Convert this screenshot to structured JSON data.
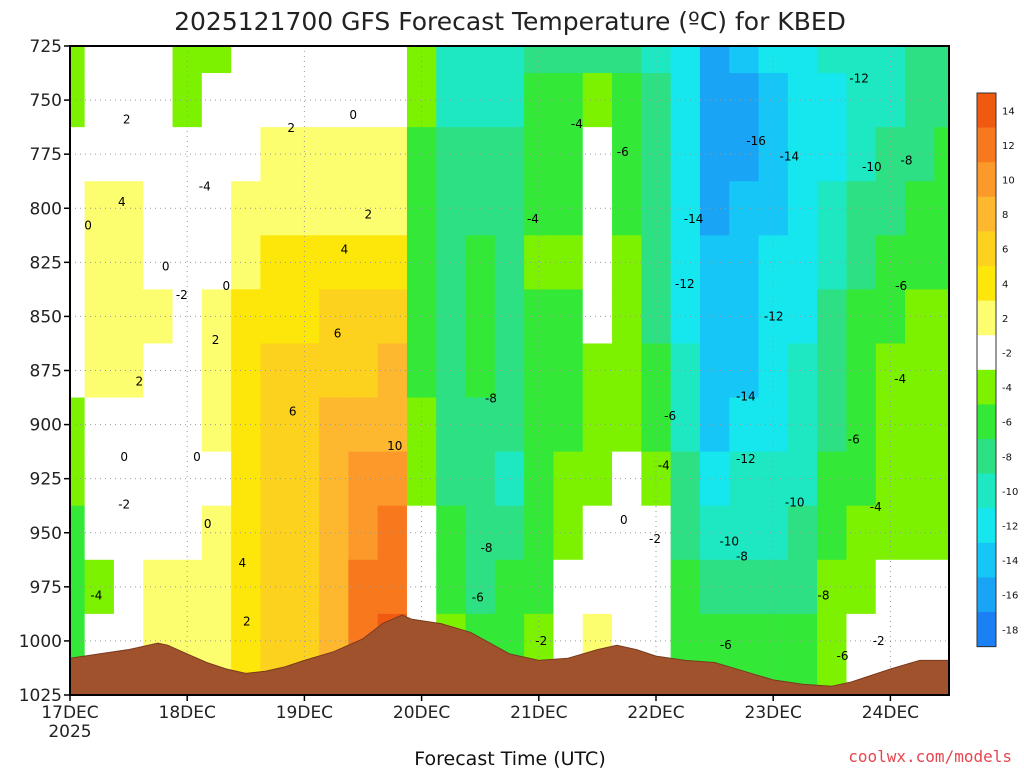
{
  "chart_data": {
    "type": "heatmap",
    "title": "2025121700 GFS Forecast Temperature (ºC) for KBED",
    "xlabel": "Forecast Time (UTC)",
    "ylabel": "",
    "credit": "coolwx.com/models",
    "x_ticks": [
      {
        "label": "17DEC",
        "sub": "2025",
        "hours": 0
      },
      {
        "label": "18DEC",
        "sub": "",
        "hours": 24
      },
      {
        "label": "19DEC",
        "sub": "",
        "hours": 48
      },
      {
        "label": "20DEC",
        "sub": "",
        "hours": 72
      },
      {
        "label": "21DEC",
        "sub": "",
        "hours": 96
      },
      {
        "label": "22DEC",
        "sub": "",
        "hours": 120
      },
      {
        "label": "23DEC",
        "sub": "",
        "hours": 144
      },
      {
        "label": "24DEC",
        "sub": "",
        "hours": 168
      }
    ],
    "x_range_hours": [
      0,
      180
    ],
    "y_ticks": [
      725,
      750,
      775,
      800,
      825,
      850,
      875,
      900,
      925,
      950,
      975,
      1000,
      1025
    ],
    "y_range_hpa": [
      725,
      1025
    ],
    "y_reversed": true,
    "grid": true,
    "colorbar": {
      "labels": [
        "14",
        "12",
        "10",
        "8",
        "6",
        "4",
        "2",
        "-2",
        "-4",
        "-6",
        "-8",
        "-10",
        "-12",
        "-14",
        "-16",
        "-18"
      ],
      "colors": [
        "#f05a10",
        "#f8781e",
        "#fb9a2a",
        "#fdb830",
        "#fdd21e",
        "#fde70a",
        "#fdfd70",
        "#ffffff",
        "#7df200",
        "#34e838",
        "#2ee084",
        "#1ee8c2",
        "#16e6ee",
        "#16c6f6",
        "#1aa4f6",
        "#1a80f4"
      ],
      "position": "right"
    },
    "columns_hours": [
      0,
      6,
      12,
      18,
      24,
      30,
      36,
      42,
      48,
      54,
      60,
      66,
      72,
      78,
      84,
      90,
      96,
      102,
      108,
      114,
      120,
      126,
      132,
      138,
      144,
      150,
      156,
      162,
      168,
      174,
      180
    ],
    "levels_hpa": [
      725,
      750,
      775,
      800,
      825,
      850,
      875,
      900,
      925,
      950,
      975,
      1000
    ],
    "temperature_c": [
      [
        -4,
        -3,
        -1,
        -1,
        0,
        -2,
        -2,
        -3,
        -4,
        -5,
        -6,
        -5
      ],
      [
        -2,
        0,
        1,
        3,
        2,
        3,
        2,
        1,
        0,
        -1,
        -3,
        -2
      ],
      [
        -1,
        0,
        1,
        2,
        2,
        3,
        2,
        1,
        1,
        -1,
        0,
        1
      ],
      [
        -1,
        -1,
        -1,
        0,
        1,
        2,
        1,
        1,
        0,
        1,
        2,
        2
      ],
      [
        -4,
        -3,
        -1,
        -1,
        -1,
        -2,
        -2,
        -1,
        0,
        1,
        2,
        2
      ],
      [
        -3,
        -2,
        0,
        1,
        1,
        2,
        2,
        2,
        1,
        2,
        3,
        3
      ],
      [
        -2,
        0,
        1,
        2,
        3,
        4,
        5,
        5,
        4,
        5,
        4,
        4
      ],
      [
        -1,
        1,
        2,
        3,
        4,
        5,
        6,
        6,
        6,
        6,
        6,
        6
      ],
      [
        0,
        1,
        2,
        3,
        4,
        5,
        6,
        6,
        7,
        7,
        7,
        7
      ],
      [
        0,
        1,
        2,
        3,
        4,
        6,
        7,
        8,
        9,
        9,
        9,
        9
      ],
      [
        0,
        1,
        2,
        3,
        4,
        6,
        7,
        9,
        10,
        11,
        12,
        12
      ],
      [
        0,
        1,
        2,
        2,
        4,
        6,
        8,
        9,
        10,
        12,
        13,
        14
      ],
      [
        -4,
        -4,
        -5,
        -5,
        -5,
        -5,
        -5,
        -4,
        -3,
        -2,
        -1,
        0
      ],
      [
        -10,
        -9,
        -7,
        -7,
        -7,
        -7,
        -7,
        -7,
        -7,
        -6,
        -5,
        -4
      ],
      [
        -10,
        -9,
        -7,
        -7,
        -6,
        -6,
        -6,
        -7,
        -8,
        -8,
        -7,
        -6
      ],
      [
        -9,
        -9,
        -8,
        -8,
        -7,
        -7,
        -7,
        -8,
        -10,
        -8,
        -6,
        -5
      ],
      [
        -8,
        -6,
        -5,
        -5,
        -4,
        -5,
        -5,
        -6,
        -6,
        -6,
        -5,
        -4
      ],
      [
        -7,
        -5,
        -5,
        -5,
        -4,
        -5,
        -5,
        -5,
        -4,
        -3,
        -1,
        0
      ],
      [
        -7,
        -4,
        -2,
        1,
        1,
        -2,
        -4,
        -4,
        -3,
        -1,
        1,
        2
      ],
      [
        -8,
        -6,
        -6,
        -5,
        -4,
        -4,
        -4,
        -4,
        -2,
        0,
        1,
        1
      ],
      [
        -9,
        -8,
        -8,
        -8,
        -7,
        -7,
        -6,
        -5,
        -4,
        -2,
        -1,
        -1
      ],
      [
        -12,
        -12,
        -12,
        -12,
        -11,
        -11,
        -10,
        -9,
        -8,
        -7,
        -6,
        -5
      ],
      [
        -15,
        -16,
        -16,
        -15,
        -14,
        -14,
        -14,
        -13,
        -11,
        -9,
        -7,
        -6
      ],
      [
        -14,
        -15,
        -15,
        -14,
        -13,
        -13,
        -13,
        -12,
        -10,
        -9,
        -7,
        -6
      ],
      [
        -12,
        -13,
        -13,
        -13,
        -12,
        -12,
        -12,
        -11,
        -10,
        -9,
        -7,
        -6
      ],
      [
        -11,
        -12,
        -12,
        -12,
        -11,
        -11,
        -10,
        -9,
        -9,
        -8,
        -7,
        -6
      ],
      [
        -10,
        -11,
        -11,
        -10,
        -9,
        -8,
        -7,
        -7,
        -6,
        -5,
        -4,
        -3
      ],
      [
        -10,
        -10,
        -9,
        -8,
        -7,
        -6,
        -6,
        -5,
        -5,
        -4,
        -3,
        -2
      ],
      [
        -9,
        -9,
        -8,
        -7,
        -6,
        -5,
        -4,
        -4,
        -3,
        -3,
        -2,
        -1
      ],
      [
        -8,
        -8,
        -7,
        -6,
        -5,
        -4,
        -4,
        -3,
        -3,
        -3,
        -2,
        -1
      ],
      [
        -8,
        -7,
        -6,
        -5,
        -5,
        -4,
        -4,
        -3,
        -3,
        -3,
        -2,
        -1
      ]
    ],
    "contour_labels": [
      {
        "text": "0",
        "hours": 3.7,
        "hpa": 808
      },
      {
        "text": "2",
        "hours": 11.6,
        "hpa": 759
      },
      {
        "text": "4",
        "hours": 10.6,
        "hpa": 797
      },
      {
        "text": "0",
        "hours": 19.6,
        "hpa": 827
      },
      {
        "text": "-2",
        "hours": 22.9,
        "hpa": 840
      },
      {
        "text": "-4",
        "hours": 27.6,
        "hpa": 790
      },
      {
        "text": "0",
        "hours": 32,
        "hpa": 836
      },
      {
        "text": "2",
        "hours": 29.8,
        "hpa": 861
      },
      {
        "text": "2",
        "hours": 14.2,
        "hpa": 880
      },
      {
        "text": "0",
        "hours": 11.1,
        "hpa": 915
      },
      {
        "text": "-2",
        "hours": 11.1,
        "hpa": 937
      },
      {
        "text": "0",
        "hours": 26,
        "hpa": 915
      },
      {
        "text": "0",
        "hours": 28.2,
        "hpa": 946
      },
      {
        "text": "-4",
        "hours": 5.4,
        "hpa": 979
      },
      {
        "text": "2",
        "hours": 36.2,
        "hpa": 991
      },
      {
        "text": "4",
        "hours": 35.3,
        "hpa": 964
      },
      {
        "text": "6",
        "hours": 45.6,
        "hpa": 894
      },
      {
        "text": "2",
        "hours": 45.3,
        "hpa": 763
      },
      {
        "text": "0",
        "hours": 58,
        "hpa": 757
      },
      {
        "text": "4",
        "hours": 56.2,
        "hpa": 819
      },
      {
        "text": "2",
        "hours": 61.1,
        "hpa": 803
      },
      {
        "text": "6",
        "hours": 54.8,
        "hpa": 858
      },
      {
        "text": "10",
        "hours": 66.5,
        "hpa": 910
      },
      {
        "text": "-4",
        "hours": 103.8,
        "hpa": 761
      },
      {
        "text": "-6",
        "hours": 113.2,
        "hpa": 774
      },
      {
        "text": "-4",
        "hours": 94.8,
        "hpa": 805
      },
      {
        "text": "-8",
        "hours": 86.2,
        "hpa": 888
      },
      {
        "text": "-8",
        "hours": 85.3,
        "hpa": 957
      },
      {
        "text": "-6",
        "hours": 83.5,
        "hpa": 980
      },
      {
        "text": "-2",
        "hours": 96.5,
        "hpa": 1000
      },
      {
        "text": "0",
        "hours": 113.4,
        "hpa": 944
      },
      {
        "text": "-2",
        "hours": 119.8,
        "hpa": 953
      },
      {
        "text": "-4",
        "hours": 121.6,
        "hpa": 919
      },
      {
        "text": "-6",
        "hours": 122.9,
        "hpa": 896
      },
      {
        "text": "-12",
        "hours": 125.9,
        "hpa": 835
      },
      {
        "text": "-14",
        "hours": 127.7,
        "hpa": 805
      },
      {
        "text": "-16",
        "hours": 140.5,
        "hpa": 769
      },
      {
        "text": "-14",
        "hours": 147.3,
        "hpa": 776
      },
      {
        "text": "-12",
        "hours": 161.6,
        "hpa": 740
      },
      {
        "text": "-10",
        "hours": 164.2,
        "hpa": 781
      },
      {
        "text": "-8",
        "hours": 171.3,
        "hpa": 778
      },
      {
        "text": "-12",
        "hours": 144.1,
        "hpa": 850
      },
      {
        "text": "-14",
        "hours": 138.4,
        "hpa": 887
      },
      {
        "text": "-12",
        "hours": 138.4,
        "hpa": 916
      },
      {
        "text": "-10",
        "hours": 148.4,
        "hpa": 936
      },
      {
        "text": "-10",
        "hours": 135,
        "hpa": 954
      },
      {
        "text": "-8",
        "hours": 137.6,
        "hpa": 961
      },
      {
        "text": "-8",
        "hours": 154.3,
        "hpa": 979
      },
      {
        "text": "-6",
        "hours": 134.3,
        "hpa": 1002
      },
      {
        "text": "-6",
        "hours": 158.2,
        "hpa": 1007
      },
      {
        "text": "-2",
        "hours": 165.6,
        "hpa": 1000
      },
      {
        "text": "-6",
        "hours": 170.2,
        "hpa": 836
      },
      {
        "text": "-4",
        "hours": 170,
        "hpa": 879
      },
      {
        "text": "-6",
        "hours": 160.5,
        "hpa": 907
      },
      {
        "text": "-4",
        "hours": 165,
        "hpa": 938
      }
    ],
    "terrain_hpa": [
      [
        0,
        1008
      ],
      [
        6,
        1006
      ],
      [
        12,
        1004
      ],
      [
        18,
        1001
      ],
      [
        20,
        1002
      ],
      [
        24,
        1006
      ],
      [
        28,
        1010
      ],
      [
        32,
        1013
      ],
      [
        36,
        1015
      ],
      [
        40,
        1014
      ],
      [
        44,
        1012
      ],
      [
        48,
        1009
      ],
      [
        54,
        1005
      ],
      [
        60,
        999
      ],
      [
        64,
        992
      ],
      [
        68,
        988
      ],
      [
        70,
        990
      ],
      [
        76,
        992
      ],
      [
        82,
        996
      ],
      [
        86,
        1001
      ],
      [
        90,
        1006
      ],
      [
        96,
        1009
      ],
      [
        102,
        1008
      ],
      [
        108,
        1004
      ],
      [
        112,
        1002
      ],
      [
        116,
        1004
      ],
      [
        120,
        1007
      ],
      [
        126,
        1009
      ],
      [
        132,
        1010
      ],
      [
        138,
        1014
      ],
      [
        144,
        1018
      ],
      [
        150,
        1020
      ],
      [
        156,
        1021
      ],
      [
        160,
        1019
      ],
      [
        164,
        1016
      ],
      [
        168,
        1013
      ],
      [
        174,
        1009
      ],
      [
        180,
        1009
      ]
    ]
  }
}
